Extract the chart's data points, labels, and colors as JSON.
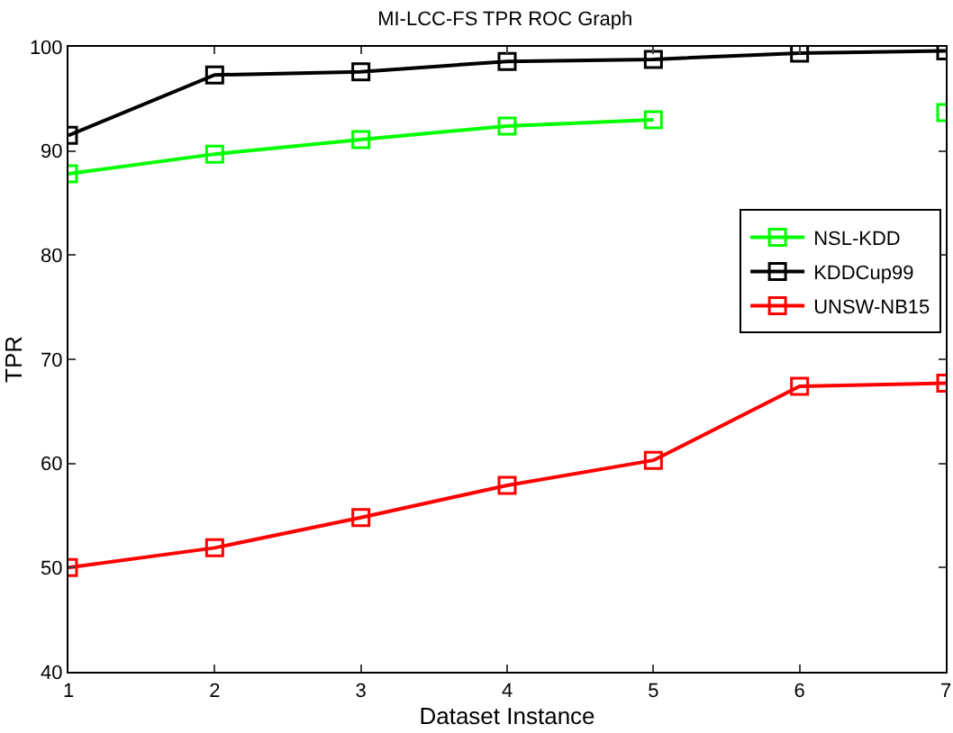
{
  "chart_data": {
    "type": "line",
    "title": "MI-LCC-FS TPR ROC Graph",
    "xlabel": "Dataset Instance",
    "ylabel": "TPR",
    "x": [
      1,
      2,
      3,
      4,
      5,
      6,
      7
    ],
    "series": [
      {
        "name": "NSL-KDD",
        "color": "#00ff00",
        "values": [
          87.8,
          89.7,
          91.1,
          92.4,
          93.0,
          null,
          93.7
        ]
      },
      {
        "name": "KDDCup99",
        "color": "#000000",
        "values": [
          91.5,
          97.3,
          97.6,
          98.6,
          98.8,
          99.4,
          99.6
        ]
      },
      {
        "name": "UNSW-NB15",
        "color": "#ff0000",
        "values": [
          50.0,
          51.9,
          54.8,
          57.9,
          60.3,
          67.4,
          67.7
        ]
      }
    ],
    "xlim": [
      1,
      7
    ],
    "xticks": [
      1,
      2,
      3,
      4,
      5,
      6,
      7
    ],
    "ylim": [
      40,
      100
    ],
    "yticks": [
      40,
      50,
      60,
      70,
      80,
      90,
      100
    ],
    "grid": false,
    "legend": "right",
    "marker": "square",
    "line_style": "solid"
  }
}
